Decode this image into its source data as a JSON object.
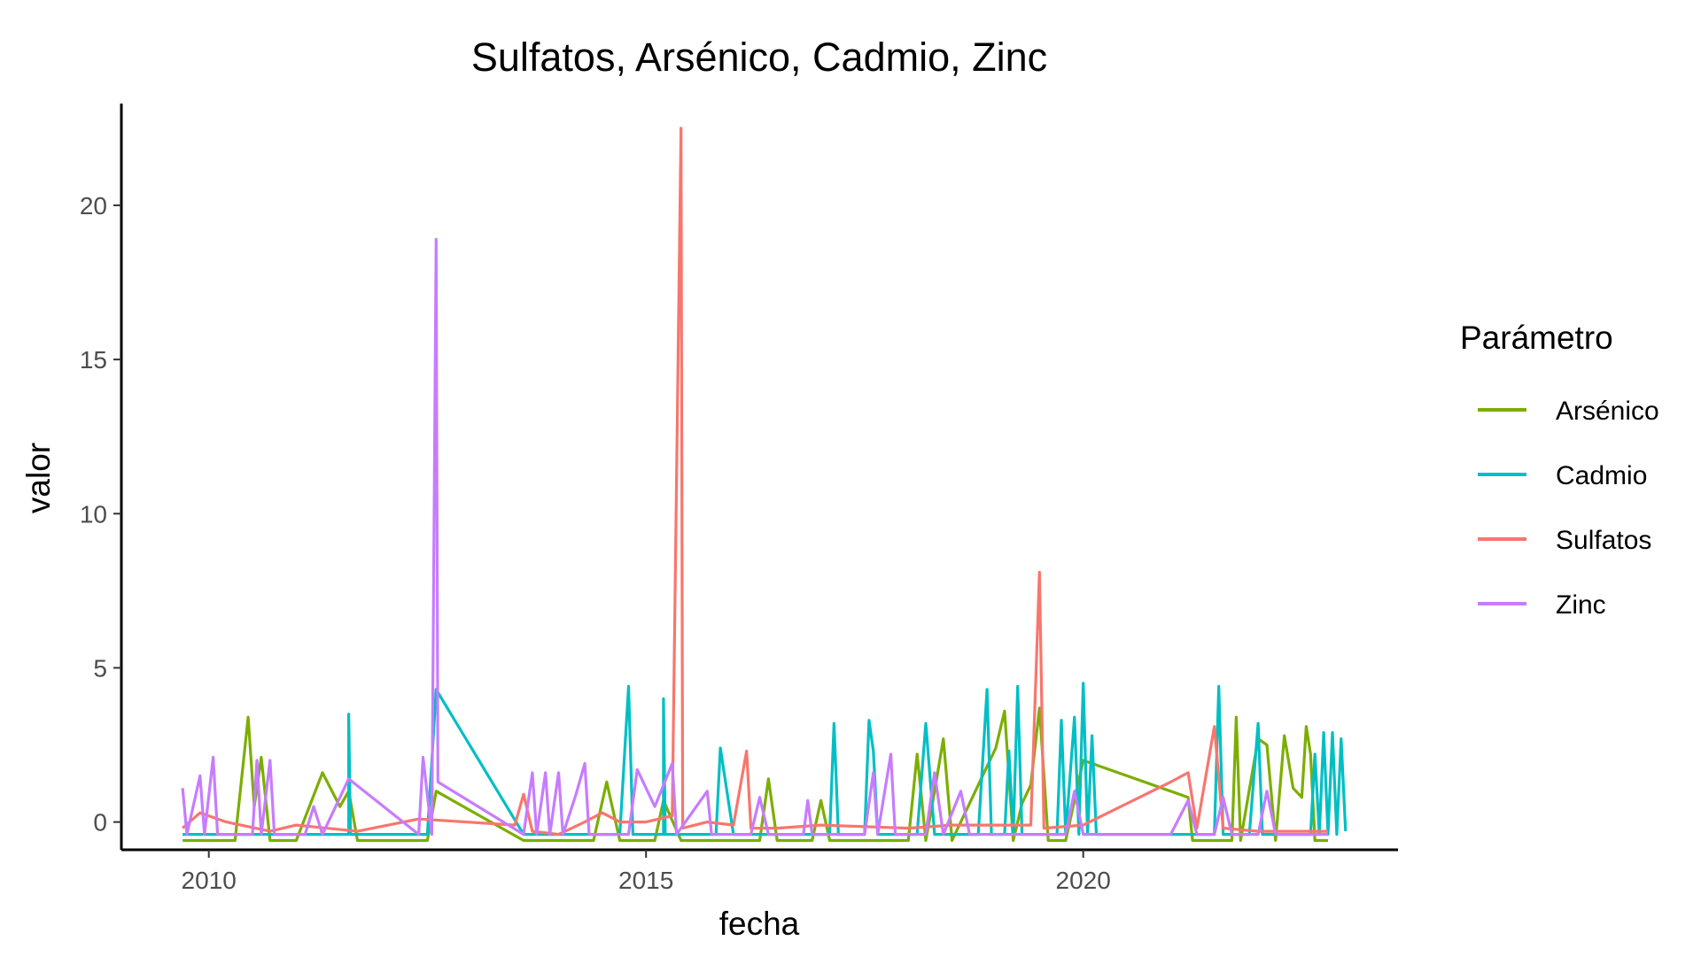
{
  "chart_data": {
    "type": "line",
    "title": "Sulfatos, Arsénico, Cadmio, Zinc",
    "xlabel": "fecha",
    "ylabel": "valor",
    "xlim": [
      2009.0,
      2023.6
    ],
    "ylim": [
      -0.9,
      23.3
    ],
    "x_ticks": [
      2010,
      2015,
      2020
    ],
    "x_tick_labels": [
      "2010",
      "2015",
      "2020"
    ],
    "y_ticks": [
      0,
      5,
      10,
      15,
      20
    ],
    "y_tick_labels": [
      "0",
      "5",
      "10",
      "15",
      "20"
    ],
    "grid": false,
    "legend": {
      "title": "Parámetro",
      "position": "right",
      "items": [
        "Arsénico",
        "Cadmio",
        "Sulfatos",
        "Zinc"
      ]
    },
    "series": [
      {
        "name": "Arsénico",
        "color": "#7CAE00",
        "points": [
          [
            2009.7,
            -0.6
          ],
          [
            2010.3,
            -0.6
          ],
          [
            2010.45,
            3.4
          ],
          [
            2010.52,
            0.5
          ],
          [
            2010.6,
            2.1
          ],
          [
            2010.7,
            -0.6
          ],
          [
            2011.0,
            -0.6
          ],
          [
            2011.3,
            1.6
          ],
          [
            2011.5,
            0.5
          ],
          [
            2011.6,
            1.0
          ],
          [
            2011.7,
            -0.6
          ],
          [
            2012.5,
            -0.6
          ],
          [
            2012.6,
            1.0
          ],
          [
            2013.6,
            -0.6
          ],
          [
            2014.4,
            -0.6
          ],
          [
            2014.55,
            1.3
          ],
          [
            2014.7,
            -0.6
          ],
          [
            2015.1,
            -0.6
          ],
          [
            2015.2,
            0.7
          ],
          [
            2015.4,
            -0.6
          ],
          [
            2016.3,
            -0.6
          ],
          [
            2016.4,
            1.4
          ],
          [
            2016.5,
            -0.6
          ],
          [
            2016.9,
            -0.6
          ],
          [
            2017.0,
            0.7
          ],
          [
            2017.1,
            -0.6
          ],
          [
            2018.0,
            -0.6
          ],
          [
            2018.1,
            2.2
          ],
          [
            2018.2,
            -0.6
          ],
          [
            2018.3,
            1.0
          ],
          [
            2018.4,
            2.7
          ],
          [
            2018.5,
            -0.6
          ],
          [
            2019.0,
            2.4
          ],
          [
            2019.1,
            3.6
          ],
          [
            2019.2,
            -0.6
          ],
          [
            2019.3,
            0.6
          ],
          [
            2019.4,
            1.2
          ],
          [
            2019.5,
            3.7
          ],
          [
            2019.6,
            -0.6
          ],
          [
            2019.8,
            -0.6
          ],
          [
            2020.0,
            2.0
          ],
          [
            2021.2,
            0.8
          ],
          [
            2021.25,
            -0.6
          ],
          [
            2021.7,
            -0.6
          ],
          [
            2021.75,
            3.4
          ],
          [
            2021.8,
            -0.6
          ],
          [
            2022.0,
            2.7
          ],
          [
            2022.1,
            2.5
          ],
          [
            2022.2,
            -0.6
          ],
          [
            2022.3,
            2.8
          ],
          [
            2022.4,
            1.1
          ],
          [
            2022.5,
            0.8
          ],
          [
            2022.55,
            3.1
          ],
          [
            2022.6,
            2.2
          ],
          [
            2022.65,
            -0.6
          ],
          [
            2022.8,
            -0.6
          ]
        ]
      },
      {
        "name": "Cadmio",
        "color": "#00BFC4",
        "points": [
          [
            2009.7,
            -0.4
          ],
          [
            2011.6,
            -0.4
          ],
          [
            2011.6,
            3.5
          ],
          [
            2011.62,
            -0.4
          ],
          [
            2012.5,
            -0.4
          ],
          [
            2012.6,
            4.3
          ],
          [
            2013.6,
            -0.4
          ],
          [
            2014.7,
            -0.4
          ],
          [
            2014.8,
            4.4
          ],
          [
            2014.85,
            -0.4
          ],
          [
            2015.2,
            -0.4
          ],
          [
            2015.2,
            4.0
          ],
          [
            2015.22,
            -0.4
          ],
          [
            2015.8,
            -0.4
          ],
          [
            2015.85,
            2.4
          ],
          [
            2016.0,
            -0.4
          ],
          [
            2017.1,
            -0.4
          ],
          [
            2017.15,
            3.2
          ],
          [
            2017.2,
            -0.4
          ],
          [
            2017.5,
            -0.4
          ],
          [
            2017.55,
            3.3
          ],
          [
            2017.6,
            2.3
          ],
          [
            2017.65,
            -0.4
          ],
          [
            2018.1,
            -0.4
          ],
          [
            2018.2,
            3.2
          ],
          [
            2018.3,
            -0.4
          ],
          [
            2018.8,
            -0.4
          ],
          [
            2018.9,
            4.3
          ],
          [
            2018.95,
            -0.4
          ],
          [
            2019.1,
            -0.4
          ],
          [
            2019.15,
            2.3
          ],
          [
            2019.2,
            -0.4
          ],
          [
            2019.25,
            4.4
          ],
          [
            2019.3,
            -0.4
          ],
          [
            2019.7,
            -0.4
          ],
          [
            2019.75,
            3.3
          ],
          [
            2019.8,
            -0.4
          ],
          [
            2019.9,
            3.4
          ],
          [
            2019.95,
            -0.4
          ],
          [
            2020.0,
            4.5
          ],
          [
            2020.05,
            -0.4
          ],
          [
            2020.1,
            2.8
          ],
          [
            2020.15,
            -0.4
          ],
          [
            2021.5,
            -0.4
          ],
          [
            2021.55,
            4.4
          ],
          [
            2021.6,
            -0.4
          ],
          [
            2021.9,
            -0.4
          ],
          [
            2022.0,
            3.2
          ],
          [
            2022.05,
            -0.4
          ],
          [
            2022.6,
            -0.4
          ],
          [
            2022.65,
            2.2
          ],
          [
            2022.7,
            -0.4
          ],
          [
            2022.75,
            2.9
          ],
          [
            2022.8,
            -0.4
          ],
          [
            2022.85,
            2.9
          ],
          [
            2022.9,
            -0.4
          ],
          [
            2022.95,
            2.7
          ],
          [
            2023.0,
            -0.3
          ]
        ]
      },
      {
        "name": "Sulfatos",
        "color": "#F8766D",
        "points": [
          [
            2009.7,
            -0.2
          ],
          [
            2009.9,
            0.3
          ],
          [
            2010.2,
            0.0
          ],
          [
            2010.7,
            -0.3
          ],
          [
            2011.0,
            -0.1
          ],
          [
            2011.7,
            -0.3
          ],
          [
            2012.4,
            0.1
          ],
          [
            2013.5,
            -0.1
          ],
          [
            2013.6,
            0.9
          ],
          [
            2013.7,
            -0.3
          ],
          [
            2014.0,
            -0.4
          ],
          [
            2014.3,
            0.0
          ],
          [
            2014.5,
            0.3
          ],
          [
            2014.7,
            0.0
          ],
          [
            2015.0,
            0.0
          ],
          [
            2015.3,
            0.2
          ],
          [
            2015.4,
            22.5
          ],
          [
            2015.42,
            -0.2
          ],
          [
            2015.7,
            0.0
          ],
          [
            2016.0,
            -0.1
          ],
          [
            2016.15,
            2.3
          ],
          [
            2016.2,
            -0.2
          ],
          [
            2016.5,
            -0.2
          ],
          [
            2017.0,
            -0.1
          ],
          [
            2018.0,
            -0.2
          ],
          [
            2018.5,
            -0.1
          ],
          [
            2019.0,
            -0.1
          ],
          [
            2019.4,
            -0.1
          ],
          [
            2019.5,
            8.1
          ],
          [
            2019.55,
            -0.2
          ],
          [
            2020.0,
            -0.1
          ],
          [
            2021.0,
            1.3
          ],
          [
            2021.2,
            1.6
          ],
          [
            2021.3,
            -0.2
          ],
          [
            2021.5,
            3.1
          ],
          [
            2021.6,
            -0.2
          ],
          [
            2022.0,
            -0.3
          ],
          [
            2022.8,
            -0.3
          ]
        ]
      },
      {
        "name": "Zinc",
        "color": "#C77CFF",
        "points": [
          [
            2009.7,
            1.1
          ],
          [
            2009.75,
            -0.4
          ],
          [
            2009.9,
            1.5
          ],
          [
            2009.95,
            -0.4
          ],
          [
            2010.05,
            2.1
          ],
          [
            2010.1,
            -0.4
          ],
          [
            2010.5,
            -0.4
          ],
          [
            2010.55,
            2.0
          ],
          [
            2010.6,
            -0.4
          ],
          [
            2010.7,
            2.0
          ],
          [
            2010.75,
            -0.4
          ],
          [
            2011.1,
            -0.4
          ],
          [
            2011.2,
            0.5
          ],
          [
            2011.3,
            -0.4
          ],
          [
            2011.6,
            1.4
          ],
          [
            2012.4,
            -0.4
          ],
          [
            2012.45,
            2.1
          ],
          [
            2012.55,
            -0.4
          ],
          [
            2012.6,
            18.9
          ],
          [
            2012.62,
            1.3
          ],
          [
            2013.6,
            -0.4
          ],
          [
            2013.7,
            1.6
          ],
          [
            2013.75,
            -0.4
          ],
          [
            2013.85,
            1.6
          ],
          [
            2013.9,
            -0.4
          ],
          [
            2014.0,
            1.6
          ],
          [
            2014.05,
            -0.4
          ],
          [
            2014.2,
            0.9
          ],
          [
            2014.3,
            1.9
          ],
          [
            2014.35,
            -0.4
          ],
          [
            2014.8,
            -0.4
          ],
          [
            2014.9,
            1.7
          ],
          [
            2015.1,
            0.5
          ],
          [
            2015.3,
            1.9
          ],
          [
            2015.35,
            -0.4
          ],
          [
            2015.7,
            1.0
          ],
          [
            2015.75,
            -0.4
          ],
          [
            2016.2,
            -0.4
          ],
          [
            2016.3,
            0.8
          ],
          [
            2016.4,
            -0.4
          ],
          [
            2016.8,
            -0.4
          ],
          [
            2016.85,
            0.7
          ],
          [
            2016.9,
            -0.4
          ],
          [
            2017.5,
            -0.4
          ],
          [
            2017.6,
            1.6
          ],
          [
            2017.65,
            -0.4
          ],
          [
            2017.8,
            2.2
          ],
          [
            2017.85,
            -0.4
          ],
          [
            2018.2,
            -0.4
          ],
          [
            2018.3,
            1.6
          ],
          [
            2018.4,
            -0.4
          ],
          [
            2018.6,
            1.0
          ],
          [
            2018.7,
            -0.4
          ],
          [
            2019.8,
            -0.4
          ],
          [
            2019.9,
            1.0
          ],
          [
            2020.0,
            -0.4
          ],
          [
            2021.0,
            -0.4
          ],
          [
            2021.2,
            0.7
          ],
          [
            2021.3,
            -0.4
          ],
          [
            2021.5,
            -0.4
          ],
          [
            2021.6,
            0.8
          ],
          [
            2021.7,
            -0.4
          ],
          [
            2022.0,
            -0.4
          ],
          [
            2022.1,
            1.0
          ],
          [
            2022.2,
            -0.4
          ],
          [
            2022.8,
            -0.4
          ]
        ]
      }
    ]
  }
}
